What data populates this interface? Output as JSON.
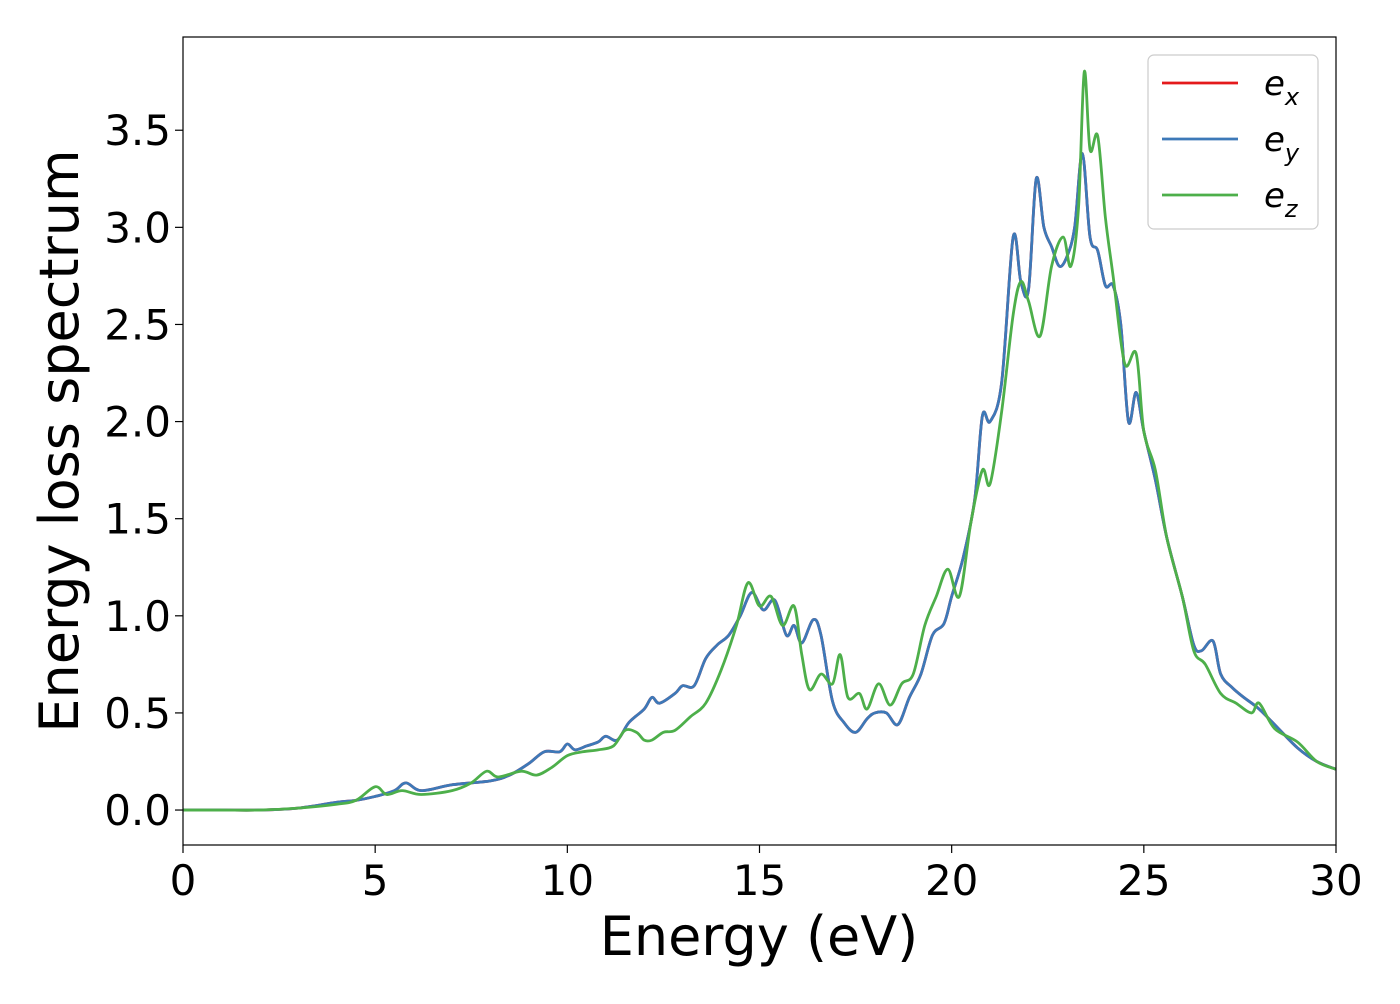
{
  "chart_data": {
    "type": "line",
    "xlabel": "Energy (eV)",
    "ylabel": "Energy loss spectrum",
    "xlim": [
      0,
      30
    ],
    "ylim": [
      -0.18,
      3.98
    ],
    "xticks": [
      0,
      5,
      10,
      15,
      20,
      25,
      30
    ],
    "xtick_labels": [
      "0",
      "5",
      "10",
      "15",
      "20",
      "25",
      "30"
    ],
    "yticks": [
      0.0,
      0.5,
      1.0,
      1.5,
      2.0,
      2.5,
      3.0,
      3.5
    ],
    "ytick_labels": [
      "0.0",
      "0.5",
      "1.0",
      "1.5",
      "2.0",
      "2.5",
      "3.0",
      "3.5"
    ],
    "grid": false,
    "legend_position": "top-right",
    "series": [
      {
        "name": "e_x",
        "label_base": "e",
        "label_sub": "x",
        "color": "#e41a1c",
        "x": [
          0,
          1,
          2,
          3,
          4,
          4.5,
          5,
          5.5,
          5.8,
          6.2,
          7,
          8,
          8.5,
          9,
          9.4,
          9.8,
          10,
          10.2,
          10.5,
          10.8,
          11,
          11.3,
          11.6,
          12,
          12.2,
          12.4,
          12.8,
          13,
          13.3,
          13.6,
          13.9,
          14.2,
          14.5,
          14.8,
          15.1,
          15.4,
          15.7,
          15.9,
          16.1,
          16.4,
          16.6,
          16.9,
          17.2,
          17.5,
          17.8,
          18,
          18.3,
          18.6,
          18.9,
          19.2,
          19.5,
          19.8,
          20,
          20.3,
          20.6,
          20.8,
          21,
          21.3,
          21.6,
          21.8,
          22,
          22.2,
          22.4,
          22.6,
          22.8,
          23,
          23.2,
          23.4,
          23.6,
          23.8,
          24,
          24.2,
          24.4,
          24.6,
          24.8,
          25,
          25.3,
          25.6,
          26,
          26.3,
          26.5,
          26.8,
          27,
          27.3,
          27.6,
          28,
          28.5,
          29,
          29.5,
          30
        ],
        "y": [
          0.0,
          0.0,
          0.0,
          0.01,
          0.04,
          0.05,
          0.07,
          0.1,
          0.14,
          0.1,
          0.13,
          0.15,
          0.18,
          0.24,
          0.3,
          0.3,
          0.34,
          0.31,
          0.33,
          0.35,
          0.38,
          0.36,
          0.45,
          0.52,
          0.58,
          0.55,
          0.6,
          0.64,
          0.64,
          0.78,
          0.85,
          0.9,
          1.0,
          1.12,
          1.03,
          1.08,
          0.9,
          0.95,
          0.86,
          0.98,
          0.9,
          0.56,
          0.45,
          0.4,
          0.47,
          0.5,
          0.5,
          0.44,
          0.58,
          0.7,
          0.9,
          0.96,
          1.1,
          1.3,
          1.6,
          2.03,
          2.0,
          2.2,
          2.95,
          2.72,
          2.68,
          3.25,
          3.0,
          2.9,
          2.8,
          2.85,
          3.0,
          3.38,
          2.95,
          2.88,
          2.7,
          2.7,
          2.5,
          2.0,
          2.15,
          1.95,
          1.7,
          1.4,
          1.1,
          0.85,
          0.82,
          0.87,
          0.7,
          0.63,
          0.58,
          0.52,
          0.42,
          0.32,
          0.25,
          0.21
        ]
      },
      {
        "name": "e_y",
        "label_base": "e",
        "label_sub": "y",
        "color": "#3d79b8",
        "x": [
          0,
          1,
          2,
          3,
          4,
          4.5,
          5,
          5.5,
          5.8,
          6.2,
          7,
          8,
          8.5,
          9,
          9.4,
          9.8,
          10,
          10.2,
          10.5,
          10.8,
          11,
          11.3,
          11.6,
          12,
          12.2,
          12.4,
          12.8,
          13,
          13.3,
          13.6,
          13.9,
          14.2,
          14.5,
          14.8,
          15.1,
          15.4,
          15.7,
          15.9,
          16.1,
          16.4,
          16.6,
          16.9,
          17.2,
          17.5,
          17.8,
          18,
          18.3,
          18.6,
          18.9,
          19.2,
          19.5,
          19.8,
          20,
          20.3,
          20.6,
          20.8,
          21,
          21.3,
          21.6,
          21.8,
          22,
          22.2,
          22.4,
          22.6,
          22.8,
          23,
          23.2,
          23.4,
          23.6,
          23.8,
          24,
          24.2,
          24.4,
          24.6,
          24.8,
          25,
          25.3,
          25.6,
          26,
          26.3,
          26.5,
          26.8,
          27,
          27.3,
          27.6,
          28,
          28.5,
          29,
          29.5,
          30
        ],
        "y": [
          0.0,
          0.0,
          0.0,
          0.01,
          0.04,
          0.05,
          0.07,
          0.1,
          0.14,
          0.1,
          0.13,
          0.15,
          0.18,
          0.24,
          0.3,
          0.3,
          0.34,
          0.31,
          0.33,
          0.35,
          0.38,
          0.36,
          0.45,
          0.52,
          0.58,
          0.55,
          0.6,
          0.64,
          0.64,
          0.78,
          0.85,
          0.9,
          1.0,
          1.12,
          1.03,
          1.08,
          0.9,
          0.95,
          0.86,
          0.98,
          0.9,
          0.56,
          0.45,
          0.4,
          0.47,
          0.5,
          0.5,
          0.44,
          0.58,
          0.7,
          0.9,
          0.96,
          1.1,
          1.3,
          1.6,
          2.03,
          2.0,
          2.2,
          2.95,
          2.72,
          2.68,
          3.25,
          3.0,
          2.9,
          2.8,
          2.85,
          3.0,
          3.38,
          2.95,
          2.88,
          2.7,
          2.7,
          2.5,
          2.0,
          2.15,
          1.95,
          1.7,
          1.4,
          1.1,
          0.85,
          0.82,
          0.87,
          0.7,
          0.63,
          0.58,
          0.52,
          0.42,
          0.32,
          0.25,
          0.21
        ]
      },
      {
        "name": "e_z",
        "label_base": "e",
        "label_sub": "z",
        "color": "#4daf4a",
        "x": [
          0,
          1,
          2,
          3,
          4,
          4.5,
          5,
          5.3,
          5.7,
          6.2,
          7,
          7.5,
          7.9,
          8.2,
          8.8,
          9.2,
          9.6,
          10,
          10.4,
          10.8,
          11.2,
          11.5,
          11.8,
          12,
          12.2,
          12.5,
          12.8,
          13.2,
          13.6,
          14,
          14.4,
          14.7,
          15,
          15.3,
          15.6,
          15.9,
          16.1,
          16.3,
          16.6,
          16.9,
          17.1,
          17.3,
          17.6,
          17.8,
          18.1,
          18.4,
          18.7,
          19,
          19.3,
          19.6,
          19.9,
          20.2,
          20.5,
          20.8,
          21,
          21.3,
          21.6,
          21.8,
          22,
          22.3,
          22.6,
          22.9,
          23.1,
          23.3,
          23.45,
          23.6,
          23.8,
          24,
          24.2,
          24.5,
          24.8,
          25,
          25.3,
          25.6,
          26,
          26.3,
          26.6,
          27,
          27.4,
          27.8,
          28,
          28.4,
          29,
          29.5,
          30
        ],
        "y": [
          0.0,
          0.0,
          0.0,
          0.01,
          0.03,
          0.05,
          0.12,
          0.08,
          0.1,
          0.08,
          0.1,
          0.14,
          0.2,
          0.17,
          0.2,
          0.18,
          0.22,
          0.28,
          0.3,
          0.31,
          0.33,
          0.41,
          0.4,
          0.36,
          0.36,
          0.4,
          0.41,
          0.48,
          0.55,
          0.72,
          0.95,
          1.17,
          1.05,
          1.1,
          0.95,
          1.05,
          0.8,
          0.62,
          0.7,
          0.65,
          0.8,
          0.58,
          0.6,
          0.52,
          0.65,
          0.54,
          0.65,
          0.7,
          0.95,
          1.1,
          1.24,
          1.1,
          1.48,
          1.75,
          1.68,
          2.05,
          2.55,
          2.72,
          2.62,
          2.44,
          2.8,
          2.95,
          2.8,
          3.1,
          3.8,
          3.4,
          3.47,
          3.05,
          2.75,
          2.3,
          2.35,
          1.95,
          1.75,
          1.4,
          1.1,
          0.82,
          0.75,
          0.6,
          0.55,
          0.5,
          0.55,
          0.42,
          0.35,
          0.25,
          0.21
        ]
      }
    ]
  }
}
